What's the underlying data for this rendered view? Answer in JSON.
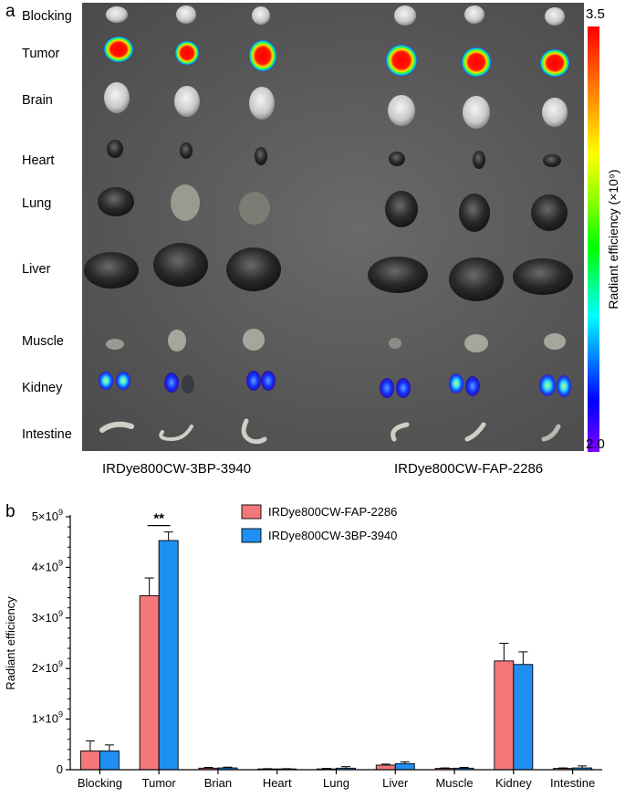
{
  "panel_a": {
    "letter": "a",
    "organs": [
      "Blocking",
      "Tumor",
      "Brain",
      "Heart",
      "Lung",
      "Liver",
      "Muscle",
      "Kidney",
      "Intestine"
    ],
    "groups": [
      "IRDye800CW-3BP-3940",
      "IRDye800CW-FAP-2286"
    ],
    "colorbar": {
      "max": "3.5",
      "min": "2.0",
      "title": "Radiant efficiency (×10⁹)"
    }
  },
  "panel_b": {
    "letter": "b"
  },
  "chart_data": {
    "type": "bar",
    "categories": [
      "Blocking",
      "Tumor",
      "Brian",
      "Heart",
      "Lung",
      "Liver",
      "Muscle",
      "Kidney",
      "Intestine"
    ],
    "series": [
      {
        "name": "IRDye800CW-FAP-2286",
        "color": "#f4777a",
        "values": [
          370000000.0,
          3440000000.0,
          30000000.0,
          15000000.0,
          15000000.0,
          90000000.0,
          25000000.0,
          2150000000.0,
          25000000.0
        ],
        "errors": [
          200000000.0,
          350000000.0,
          15000000.0,
          5000000.0,
          10000000.0,
          20000000.0,
          10000000.0,
          350000000.0,
          10000000.0
        ]
      },
      {
        "name": "IRDye800CW-3BP-3940",
        "color": "#1f8ff2",
        "values": [
          370000000.0,
          4530000000.0,
          35000000.0,
          15000000.0,
          30000000.0,
          120000000.0,
          30000000.0,
          2080000000.0,
          35000000.0
        ],
        "errors": [
          120000000.0,
          170000000.0,
          15000000.0,
          5000000.0,
          30000000.0,
          35000000.0,
          15000000.0,
          250000000.0,
          40000000.0
        ]
      }
    ],
    "ylabel": "Radiant efficiency",
    "ylim": [
      0,
      5000000000.0
    ],
    "yticks": [
      0,
      1000000000.0,
      2000000000.0,
      3000000000.0,
      4000000000.0,
      5000000000.0
    ],
    "ytick_labels": [
      {
        "base": "0",
        "exp": ""
      },
      {
        "base": "1×10",
        "exp": "9"
      },
      {
        "base": "2×10",
        "exp": "9"
      },
      {
        "base": "3×10",
        "exp": "9"
      },
      {
        "base": "4×10",
        "exp": "9"
      },
      {
        "base": "5×10",
        "exp": "9"
      }
    ],
    "annotations": [
      {
        "text": "**",
        "category": "Tumor"
      }
    ],
    "legend": "top-right",
    "grid": false
  }
}
